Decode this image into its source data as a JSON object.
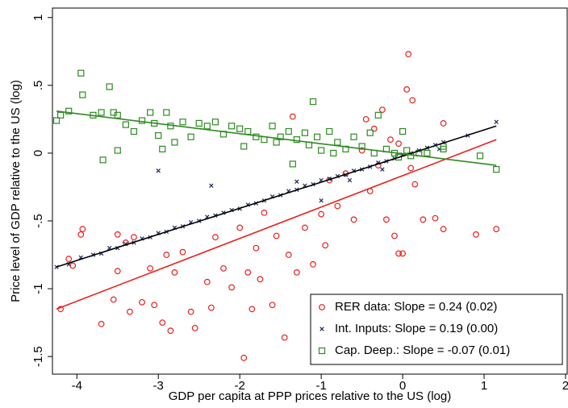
{
  "chart_data": {
    "type": "scatter",
    "xlabel": "GDP per capita at PPP prices relative to the US (log)",
    "ylabel": "Price level of GDP relative to the US (log)",
    "xlim": [
      -4.3,
      2.02
    ],
    "ylim": [
      -1.63,
      1.07
    ],
    "xticks": [
      -4,
      -3,
      -2,
      -1,
      0,
      1,
      2
    ],
    "yticks": [
      1,
      {
        "value": 0.5,
        "label": ".5"
      },
      0,
      {
        "value": -0.5,
        "label": "-.5"
      },
      -1,
      -1.5
    ],
    "grid": false,
    "legend": "bottom-right",
    "series": [
      {
        "name": "RER data: Slope = 0.24 (0.02)",
        "color": "#e8201c",
        "marker": "circle",
        "x": [
          -4.2,
          -4.1,
          -4.05,
          -3.95,
          -3.93,
          -3.7,
          -3.55,
          -3.5,
          -3.5,
          -3.4,
          -3.35,
          -3.3,
          -3.2,
          -3.1,
          -3.05,
          -2.95,
          -2.9,
          -2.85,
          -2.8,
          -2.7,
          -2.6,
          -2.55,
          -2.4,
          -2.35,
          -2.3,
          -2.2,
          -2.1,
          -2.0,
          -1.95,
          -1.9,
          -1.85,
          -1.8,
          -1.75,
          -1.7,
          -1.6,
          -1.55,
          -1.45,
          -1.4,
          -1.35,
          -1.3,
          -1.2,
          -1.1,
          -1.0,
          -0.95,
          -0.9,
          -0.8,
          -0.7,
          -0.6,
          -0.5,
          -0.45,
          -0.4,
          -0.35,
          -0.25,
          -0.2,
          -0.15,
          -0.05,
          -0.1,
          -0.05,
          0.0,
          0.05,
          0.07,
          0.12,
          0.15,
          0.25,
          0.4,
          0.5,
          0.5,
          0.9,
          1.15,
          0.1,
          -0.3
        ],
        "y": [
          -1.15,
          -0.78,
          -0.83,
          -0.6,
          -0.56,
          -1.26,
          -1.08,
          -0.87,
          -0.6,
          -0.66,
          -1.17,
          -0.62,
          -1.1,
          -0.85,
          -1.12,
          -1.25,
          -0.75,
          -1.31,
          -0.88,
          -0.73,
          -1.17,
          -1.29,
          -0.95,
          -1.14,
          -0.62,
          -0.85,
          -0.99,
          -0.55,
          -1.51,
          -0.88,
          -1.15,
          -0.7,
          -0.93,
          -0.44,
          -1.12,
          -0.61,
          -1.36,
          -0.75,
          0.27,
          -0.88,
          -0.55,
          -0.82,
          -0.45,
          -0.68,
          -0.2,
          -0.39,
          -0.15,
          -0.49,
          0.02,
          0.25,
          -0.28,
          0.18,
          0.32,
          -0.49,
          0.1,
          0.07,
          -0.61,
          -0.74,
          -0.74,
          0.47,
          0.73,
          0.39,
          -0.23,
          -0.49,
          -0.48,
          0.22,
          -0.56,
          -0.6,
          -0.56,
          -0.11,
          -0.09
        ],
        "fit": {
          "x": [
            -4.25,
            1.15
          ],
          "y": [
            -1.15,
            0.1
          ]
        }
      },
      {
        "name": "Int. Inputs: Slope = 0.19 (0.00)",
        "color": "#1a2a5e",
        "marker": "x",
        "x": [
          -4.25,
          -4.1,
          -3.95,
          -3.8,
          -3.7,
          -3.6,
          -3.5,
          -3.4,
          -3.3,
          -3.2,
          -3.1,
          -3.0,
          -2.9,
          -2.8,
          -2.7,
          -2.6,
          -2.5,
          -2.4,
          -2.3,
          -2.2,
          -2.1,
          -2.0,
          -1.9,
          -1.8,
          -1.7,
          -1.6,
          -1.5,
          -1.4,
          -1.3,
          -1.2,
          -1.1,
          -1.0,
          -0.9,
          -0.8,
          -0.7,
          -0.6,
          -0.5,
          -0.4,
          -0.3,
          -0.2,
          -0.1,
          0.0,
          0.1,
          0.2,
          0.3,
          0.4,
          0.5,
          0.8,
          1.15,
          -3.0,
          -2.35,
          -1.3,
          -1.0,
          -0.65,
          -0.25,
          0.45
        ],
        "y": [
          -0.84,
          -0.82,
          -0.77,
          -0.75,
          -0.74,
          -0.7,
          -0.7,
          -0.67,
          -0.66,
          -0.63,
          -0.62,
          -0.59,
          -0.58,
          -0.55,
          -0.54,
          -0.51,
          -0.5,
          -0.47,
          -0.46,
          -0.44,
          -0.42,
          -0.41,
          -0.38,
          -0.37,
          -0.35,
          -0.32,
          -0.31,
          -0.28,
          -0.27,
          -0.24,
          -0.23,
          -0.2,
          -0.19,
          -0.17,
          -0.16,
          -0.13,
          -0.12,
          -0.1,
          -0.07,
          -0.06,
          -0.04,
          -0.01,
          0.0,
          0.02,
          0.04,
          0.06,
          0.08,
          0.13,
          0.23,
          -0.13,
          -0.24,
          -0.21,
          -0.35,
          -0.2,
          -0.12,
          0.03
        ],
        "fit": {
          "x": [
            -4.25,
            1.15
          ],
          "y": [
            -0.84,
            0.2
          ]
        }
      },
      {
        "name": "Cap. Deep.: Slope = -0.07 (0.01)",
        "color": "#2e8b22",
        "marker": "square",
        "x": [
          -4.25,
          -4.2,
          -4.1,
          -3.95,
          -3.93,
          -3.8,
          -3.7,
          -3.68,
          -3.6,
          -3.55,
          -3.5,
          -3.5,
          -3.4,
          -3.3,
          -3.2,
          -3.1,
          -3.05,
          -3.0,
          -2.95,
          -2.9,
          -2.85,
          -2.8,
          -2.7,
          -2.6,
          -2.5,
          -2.4,
          -2.3,
          -2.2,
          -2.1,
          -2.0,
          -1.95,
          -1.9,
          -1.8,
          -1.7,
          -1.6,
          -1.55,
          -1.5,
          -1.4,
          -1.35,
          -1.3,
          -1.2,
          -1.15,
          -1.1,
          -1.05,
          -1.0,
          -0.9,
          -0.85,
          -0.8,
          -0.7,
          -0.6,
          -0.5,
          -0.4,
          -0.35,
          -0.3,
          -0.2,
          -0.1,
          -0.05,
          0.0,
          0.05,
          0.1,
          0.2,
          0.3,
          0.5,
          0.5,
          0.95,
          1.15
        ],
        "y": [
          0.24,
          0.28,
          0.31,
          0.59,
          0.43,
          0.28,
          0.3,
          -0.05,
          0.49,
          0.3,
          0.28,
          0.02,
          0.21,
          0.16,
          0.24,
          0.3,
          0.22,
          0.13,
          0.03,
          0.3,
          0.2,
          0.08,
          0.23,
          0.12,
          0.22,
          0.2,
          0.23,
          0.14,
          0.2,
          0.18,
          0.05,
          0.16,
          0.12,
          0.1,
          0.2,
          0.08,
          0.12,
          0.16,
          -0.08,
          0.1,
          0.15,
          0.06,
          0.38,
          0.12,
          0.02,
          0.16,
          0.0,
          0.08,
          0.03,
          0.12,
          0.05,
          0.15,
          0.0,
          0.28,
          0.03,
          0.0,
          -0.03,
          0.16,
          0.02,
          -0.02,
          0.0,
          0.0,
          0.03,
          0.05,
          -0.02,
          -0.12
        ],
        "fit": {
          "x": [
            -4.25,
            1.15
          ],
          "y": [
            0.31,
            -0.09
          ]
        }
      }
    ]
  }
}
